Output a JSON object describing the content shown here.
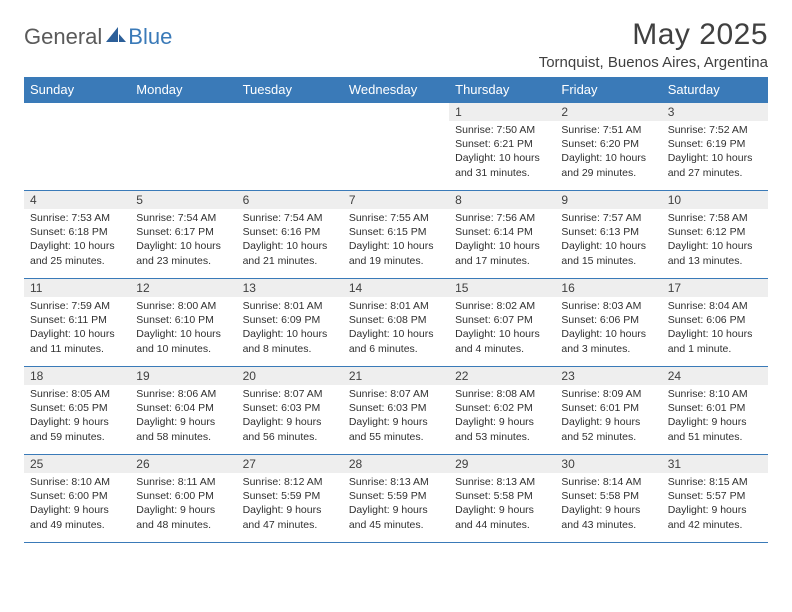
{
  "logo": {
    "general": "General",
    "blue": "Blue"
  },
  "title": "May 2025",
  "location": "Tornquist, Buenos Aires, Argentina",
  "colors": {
    "header_bg": "#3a7ab8",
    "daynum_bg": "#eeeeee",
    "rule": "#3a7ab8",
    "text": "#303030"
  },
  "weekdays": [
    "Sunday",
    "Monday",
    "Tuesday",
    "Wednesday",
    "Thursday",
    "Friday",
    "Saturday"
  ],
  "weeks": [
    [
      null,
      null,
      null,
      null,
      {
        "n": "1",
        "sunrise": "7:50 AM",
        "sunset": "6:21 PM",
        "daylight": "10 hours and 31 minutes."
      },
      {
        "n": "2",
        "sunrise": "7:51 AM",
        "sunset": "6:20 PM",
        "daylight": "10 hours and 29 minutes."
      },
      {
        "n": "3",
        "sunrise": "7:52 AM",
        "sunset": "6:19 PM",
        "daylight": "10 hours and 27 minutes."
      }
    ],
    [
      {
        "n": "4",
        "sunrise": "7:53 AM",
        "sunset": "6:18 PM",
        "daylight": "10 hours and 25 minutes."
      },
      {
        "n": "5",
        "sunrise": "7:54 AM",
        "sunset": "6:17 PM",
        "daylight": "10 hours and 23 minutes."
      },
      {
        "n": "6",
        "sunrise": "7:54 AM",
        "sunset": "6:16 PM",
        "daylight": "10 hours and 21 minutes."
      },
      {
        "n": "7",
        "sunrise": "7:55 AM",
        "sunset": "6:15 PM",
        "daylight": "10 hours and 19 minutes."
      },
      {
        "n": "8",
        "sunrise": "7:56 AM",
        "sunset": "6:14 PM",
        "daylight": "10 hours and 17 minutes."
      },
      {
        "n": "9",
        "sunrise": "7:57 AM",
        "sunset": "6:13 PM",
        "daylight": "10 hours and 15 minutes."
      },
      {
        "n": "10",
        "sunrise": "7:58 AM",
        "sunset": "6:12 PM",
        "daylight": "10 hours and 13 minutes."
      }
    ],
    [
      {
        "n": "11",
        "sunrise": "7:59 AM",
        "sunset": "6:11 PM",
        "daylight": "10 hours and 11 minutes."
      },
      {
        "n": "12",
        "sunrise": "8:00 AM",
        "sunset": "6:10 PM",
        "daylight": "10 hours and 10 minutes."
      },
      {
        "n": "13",
        "sunrise": "8:01 AM",
        "sunset": "6:09 PM",
        "daylight": "10 hours and 8 minutes."
      },
      {
        "n": "14",
        "sunrise": "8:01 AM",
        "sunset": "6:08 PM",
        "daylight": "10 hours and 6 minutes."
      },
      {
        "n": "15",
        "sunrise": "8:02 AM",
        "sunset": "6:07 PM",
        "daylight": "10 hours and 4 minutes."
      },
      {
        "n": "16",
        "sunrise": "8:03 AM",
        "sunset": "6:06 PM",
        "daylight": "10 hours and 3 minutes."
      },
      {
        "n": "17",
        "sunrise": "8:04 AM",
        "sunset": "6:06 PM",
        "daylight": "10 hours and 1 minute."
      }
    ],
    [
      {
        "n": "18",
        "sunrise": "8:05 AM",
        "sunset": "6:05 PM",
        "daylight": "9 hours and 59 minutes."
      },
      {
        "n": "19",
        "sunrise": "8:06 AM",
        "sunset": "6:04 PM",
        "daylight": "9 hours and 58 minutes."
      },
      {
        "n": "20",
        "sunrise": "8:07 AM",
        "sunset": "6:03 PM",
        "daylight": "9 hours and 56 minutes."
      },
      {
        "n": "21",
        "sunrise": "8:07 AM",
        "sunset": "6:03 PM",
        "daylight": "9 hours and 55 minutes."
      },
      {
        "n": "22",
        "sunrise": "8:08 AM",
        "sunset": "6:02 PM",
        "daylight": "9 hours and 53 minutes."
      },
      {
        "n": "23",
        "sunrise": "8:09 AM",
        "sunset": "6:01 PM",
        "daylight": "9 hours and 52 minutes."
      },
      {
        "n": "24",
        "sunrise": "8:10 AM",
        "sunset": "6:01 PM",
        "daylight": "9 hours and 51 minutes."
      }
    ],
    [
      {
        "n": "25",
        "sunrise": "8:10 AM",
        "sunset": "6:00 PM",
        "daylight": "9 hours and 49 minutes."
      },
      {
        "n": "26",
        "sunrise": "8:11 AM",
        "sunset": "6:00 PM",
        "daylight": "9 hours and 48 minutes."
      },
      {
        "n": "27",
        "sunrise": "8:12 AM",
        "sunset": "5:59 PM",
        "daylight": "9 hours and 47 minutes."
      },
      {
        "n": "28",
        "sunrise": "8:13 AM",
        "sunset": "5:59 PM",
        "daylight": "9 hours and 45 minutes."
      },
      {
        "n": "29",
        "sunrise": "8:13 AM",
        "sunset": "5:58 PM",
        "daylight": "9 hours and 44 minutes."
      },
      {
        "n": "30",
        "sunrise": "8:14 AM",
        "sunset": "5:58 PM",
        "daylight": "9 hours and 43 minutes."
      },
      {
        "n": "31",
        "sunrise": "8:15 AM",
        "sunset": "5:57 PM",
        "daylight": "9 hours and 42 minutes."
      }
    ]
  ],
  "labels": {
    "sunrise": "Sunrise: ",
    "sunset": "Sunset: ",
    "daylight": "Daylight: "
  }
}
